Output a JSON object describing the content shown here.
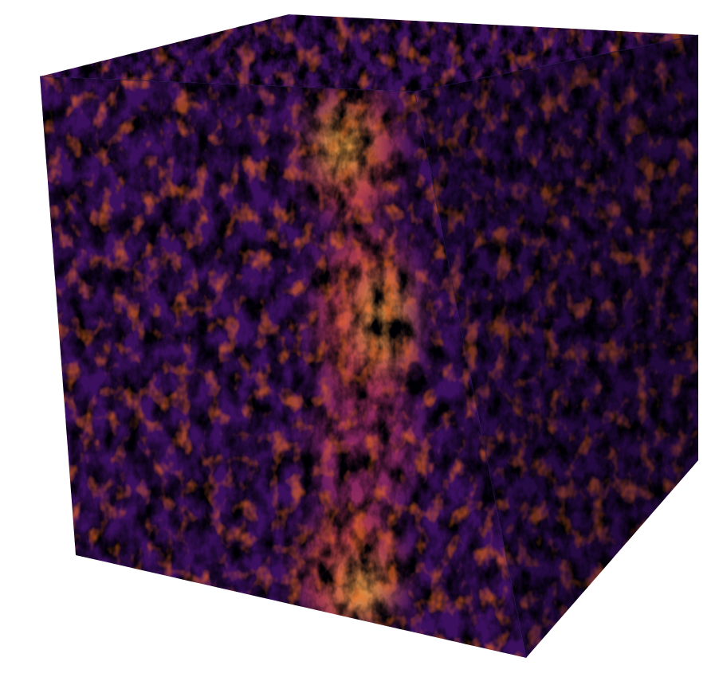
{
  "scene": {
    "subject": "turbulence-volume-cube",
    "colormap": [
      "#000004",
      "#1b0c41",
      "#4a0c6b",
      "#781c6d",
      "#a52c60",
      "#cf4446",
      "#ed6925",
      "#fb9b06",
      "#f7d13d",
      "#fcffa4"
    ],
    "background_color": "#ffffff",
    "band_color_hot": "#f7d13d",
    "band_color_warm": "#ed6925",
    "base_color": "#1b0c41"
  }
}
